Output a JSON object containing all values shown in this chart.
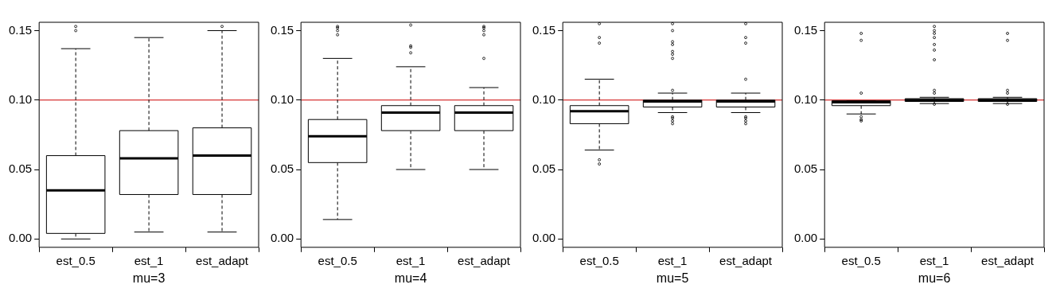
{
  "chart_data": [
    {
      "type": "box",
      "xlabel": "mu=3",
      "categories": [
        "est_0.5",
        "est_1",
        "est_adapt"
      ],
      "ylim": [
        -0.006,
        0.156
      ],
      "yticks": [
        {
          "value": 0,
          "label": "0.00"
        },
        {
          "value": 0.05,
          "label": "0.05"
        },
        {
          "value": 0.1,
          "label": "0.10"
        },
        {
          "value": 0.15,
          "label": "0.15"
        }
      ],
      "grid": false,
      "ref_lines": [
        {
          "axis": "y",
          "value": 0.1,
          "color": "#cc0000"
        }
      ],
      "boxes": [
        {
          "low": 0,
          "q1": 0.004,
          "median": 0.035,
          "q3": 0.06,
          "high": 0.137,
          "outliers": [
            0.153,
            0.15
          ]
        },
        {
          "low": 0.005,
          "q1": 0.032,
          "median": 0.058,
          "q3": 0.078,
          "high": 0.145
        },
        {
          "low": 0.005,
          "q1": 0.032,
          "median": 0.06,
          "q3": 0.08,
          "high": 0.15,
          "outliers": [
            0.153
          ]
        }
      ]
    },
    {
      "type": "box",
      "xlabel": "mu=4",
      "categories": [
        "est_0.5",
        "est_1",
        "est_adapt"
      ],
      "ylim": [
        -0.006,
        0.156
      ],
      "yticks": [
        {
          "value": 0,
          "label": "0.00"
        },
        {
          "value": 0.05,
          "label": "0.05"
        },
        {
          "value": 0.1,
          "label": "0.10"
        },
        {
          "value": 0.15,
          "label": "0.15"
        }
      ],
      "grid": false,
      "ref_lines": [
        {
          "axis": "y",
          "value": 0.1,
          "color": "#cc0000"
        }
      ],
      "boxes": [
        {
          "low": 0.014,
          "q1": 0.055,
          "median": 0.074,
          "q3": 0.086,
          "high": 0.13,
          "outliers": [
            0.153,
            0.152,
            0.15,
            0.147
          ]
        },
        {
          "low": 0.05,
          "q1": 0.078,
          "median": 0.091,
          "q3": 0.096,
          "high": 0.124,
          "outliers": [
            0.154,
            0.139,
            0.138,
            0.134
          ]
        },
        {
          "low": 0.05,
          "q1": 0.078,
          "median": 0.091,
          "q3": 0.096,
          "high": 0.109,
          "outliers": [
            0.153,
            0.152,
            0.15,
            0.147,
            0.13
          ]
        }
      ]
    },
    {
      "type": "box",
      "xlabel": "mu=5",
      "categories": [
        "est_0.5",
        "est_1",
        "est_adapt"
      ],
      "ylim": [
        -0.006,
        0.156
      ],
      "yticks": [
        {
          "value": 0,
          "label": "0.00"
        },
        {
          "value": 0.05,
          "label": "0.05"
        },
        {
          "value": 0.1,
          "label": "0.10"
        },
        {
          "value": 0.15,
          "label": "0.15"
        }
      ],
      "grid": false,
      "ref_lines": [
        {
          "axis": "y",
          "value": 0.1,
          "color": "#cc0000"
        }
      ],
      "boxes": [
        {
          "low": 0.064,
          "q1": 0.083,
          "median": 0.092,
          "q3": 0.096,
          "high": 0.115,
          "outliers": [
            0.057,
            0.054,
            0.145,
            0.141,
            0.155
          ]
        },
        {
          "low": 0.091,
          "q1": 0.095,
          "median": 0.099,
          "q3": 0.1,
          "high": 0.105,
          "outliers": [
            0.107,
            0.15,
            0.142,
            0.14,
            0.135,
            0.133,
            0.13,
            0.155,
            0.088,
            0.087,
            0.085,
            0.083
          ]
        },
        {
          "low": 0.091,
          "q1": 0.095,
          "median": 0.099,
          "q3": 0.1,
          "high": 0.105,
          "outliers": [
            0.115,
            0.145,
            0.141,
            0.155,
            0.088,
            0.087,
            0.085,
            0.083
          ]
        }
      ]
    },
    {
      "type": "box",
      "xlabel": "mu=6",
      "categories": [
        "est_0.5",
        "est_1",
        "est_adapt"
      ],
      "ylim": [
        -0.006,
        0.156
      ],
      "yticks": [
        {
          "value": 0,
          "label": "0.00"
        },
        {
          "value": 0.05,
          "label": "0.05"
        },
        {
          "value": 0.1,
          "label": "0.10"
        },
        {
          "value": 0.15,
          "label": "0.15"
        }
      ],
      "grid": false,
      "ref_lines": [
        {
          "axis": "y",
          "value": 0.1,
          "color": "#cc0000"
        }
      ],
      "boxes": [
        {
          "low": 0.09,
          "q1": 0.096,
          "median": 0.0985,
          "q3": 0.0995,
          "high": 0.0995,
          "outliers": [
            0.105,
            0.148,
            0.143,
            0.088,
            0.086,
            0.085
          ]
        },
        {
          "low": 0.0975,
          "q1": 0.099,
          "median": 0.1,
          "q3": 0.101,
          "high": 0.102,
          "outliers": [
            0.107,
            0.105,
            0.153,
            0.15,
            0.148,
            0.145,
            0.14,
            0.136,
            0.129,
            0.097
          ]
        },
        {
          "low": 0.0975,
          "q1": 0.099,
          "median": 0.1,
          "q3": 0.101,
          "high": 0.102,
          "outliers": [
            0.107,
            0.105,
            0.148,
            0.143,
            0.097
          ]
        }
      ]
    }
  ]
}
